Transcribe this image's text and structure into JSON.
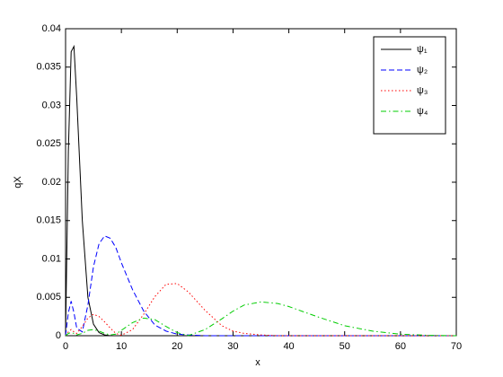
{
  "chart_data": {
    "type": "line",
    "xlabel": "x",
    "ylabel": "qX",
    "x": [
      0,
      0.5,
      1,
      1.5,
      2,
      3,
      4,
      5,
      6,
      7,
      8,
      9,
      10,
      12,
      14,
      16,
      18,
      20,
      22,
      25,
      28,
      30,
      32,
      35,
      38,
      40,
      45,
      50,
      55,
      60,
      65,
      70
    ],
    "series": [
      {
        "name": "ψ₁",
        "color": "#000000",
        "style": "solid",
        "values": [
          0,
          0.024,
          0.037,
          0.0377,
          0.031,
          0.015,
          0.005,
          0.0015,
          0.0004,
          0.0001,
          0,
          0,
          0,
          0,
          0,
          0,
          0,
          0,
          0,
          0,
          0,
          0,
          0,
          0,
          0,
          0,
          0,
          0,
          0,
          0,
          0,
          0
        ]
      },
      {
        "name": "ψ₂",
        "color": "#0000ff",
        "style": "dashed",
        "values": [
          0,
          0.003,
          0.0045,
          0.003,
          0.001,
          0.0005,
          0.004,
          0.009,
          0.012,
          0.013,
          0.0127,
          0.0115,
          0.0095,
          0.006,
          0.0032,
          0.0014,
          0.0006,
          0.0002,
          0.0001,
          0,
          0,
          0,
          0,
          0,
          0,
          0,
          0,
          0,
          0,
          0,
          0,
          0
        ]
      },
      {
        "name": "ψ₃",
        "color": "#ff0000",
        "style": "dotted",
        "values": [
          0,
          0.0005,
          0.0008,
          0.0005,
          0.0003,
          0.0012,
          0.0023,
          0.0028,
          0.0025,
          0.0018,
          0.001,
          0.0003,
          5e-05,
          0.0008,
          0.0028,
          0.0051,
          0.0067,
          0.0068,
          0.0057,
          0.0033,
          0.0013,
          0.0006,
          0.0003,
          0.0001,
          0,
          0,
          0,
          0,
          0,
          0,
          0,
          0
        ]
      },
      {
        "name": "ψ₄",
        "color": "#00cc00",
        "style": "dashdot",
        "values": [
          0,
          0.0003,
          0.0004,
          0.0003,
          0.0001,
          0.0003,
          0.0007,
          0.0008,
          0.0006,
          0.0003,
          0.0001,
          0.0002,
          0.0007,
          0.0017,
          0.0023,
          0.0021,
          0.0012,
          0.0004,
          2e-05,
          0.0008,
          0.0022,
          0.0032,
          0.004,
          0.0044,
          0.0042,
          0.0038,
          0.0025,
          0.0013,
          0.0006,
          0.0002,
          5e-05,
          0
        ]
      }
    ],
    "xlim": [
      0,
      70
    ],
    "xticks": [
      0,
      10,
      20,
      30,
      40,
      50,
      60,
      70
    ],
    "ylim": [
      0,
      0.04
    ],
    "yticks": [
      0,
      0.005,
      0.01,
      0.015,
      0.02,
      0.025,
      0.03,
      0.035,
      0.04
    ],
    "grid": false,
    "legend": "top-right"
  }
}
